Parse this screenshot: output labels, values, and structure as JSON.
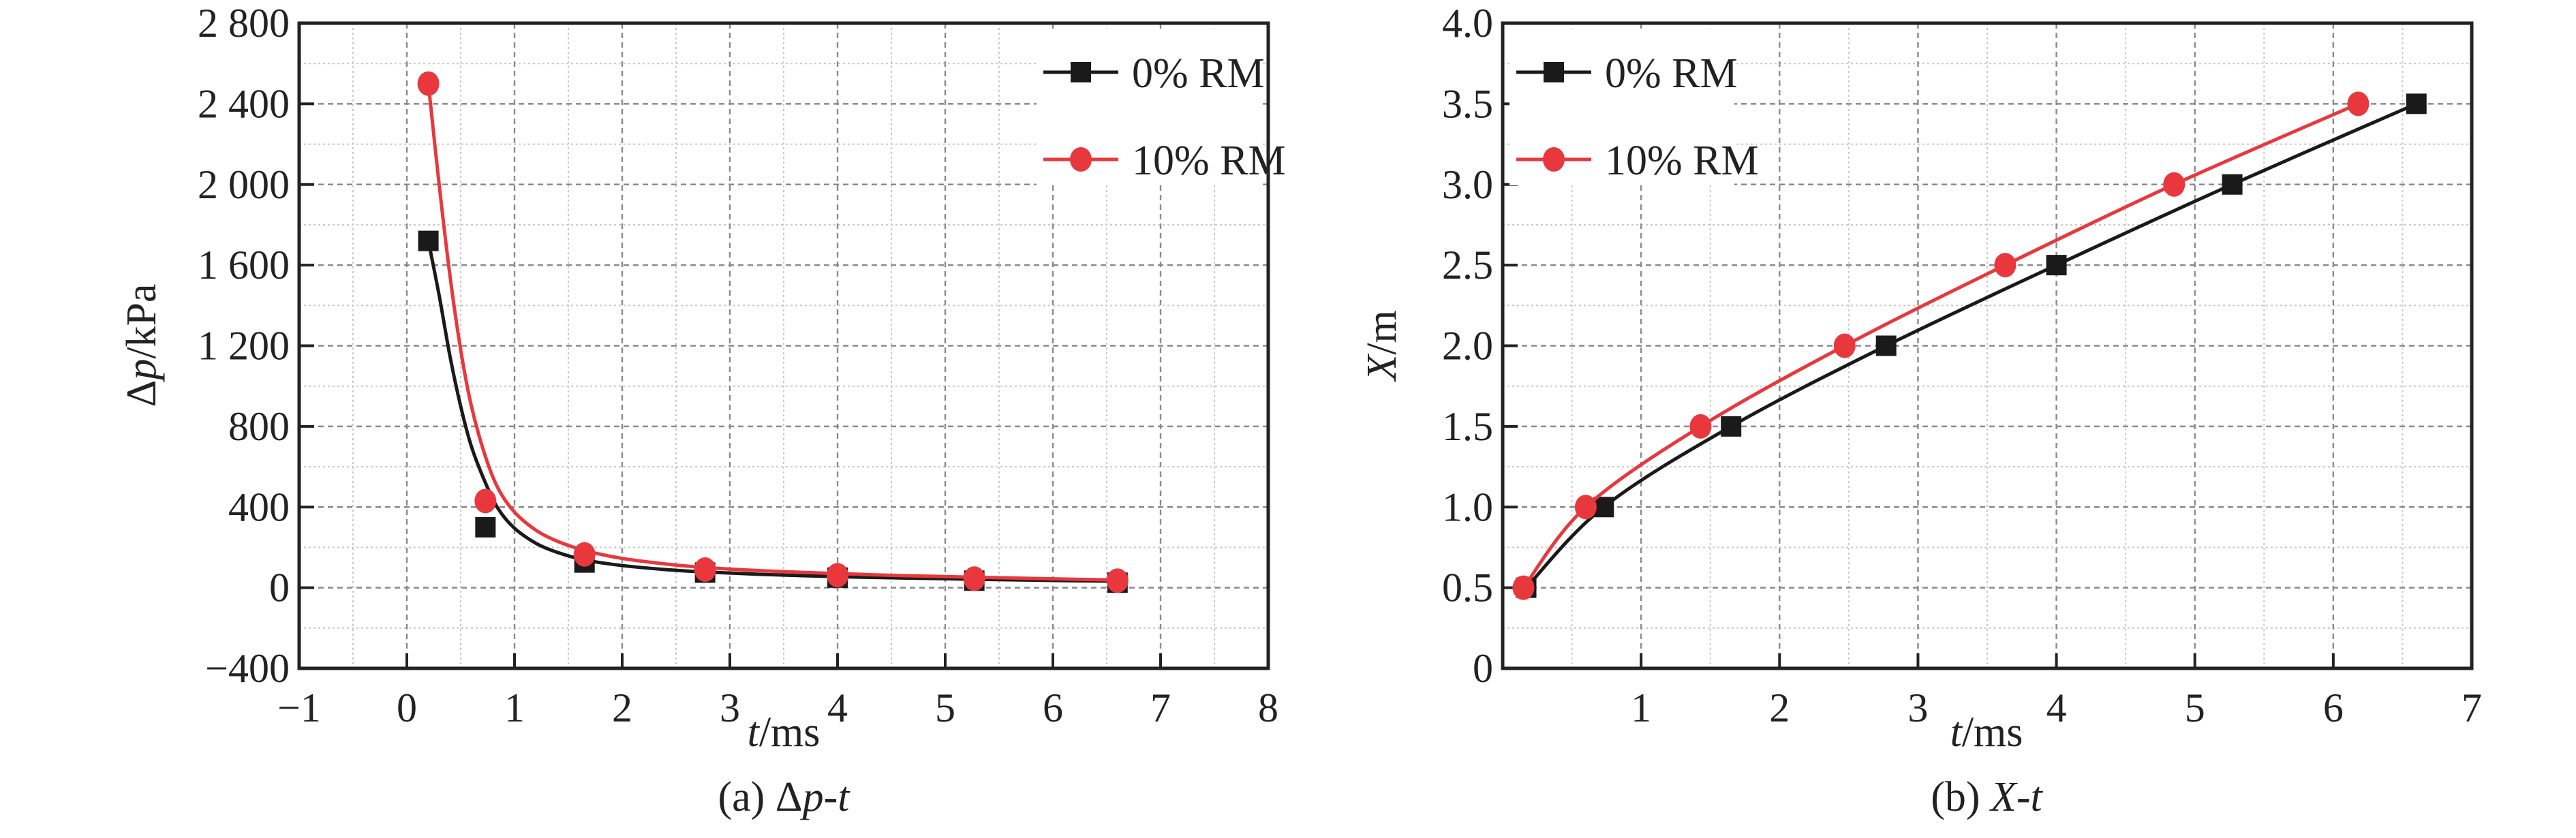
{
  "chart_data": [
    {
      "type": "line",
      "panel": "a",
      "caption": {
        "prefix": "(a) ",
        "delta": "Δ",
        "var1": "p",
        "dash": "-",
        "var2": "t"
      },
      "xlabel": {
        "var": "t",
        "unit": "/ms"
      },
      "ylabel": {
        "delta": "Δ",
        "var": "p",
        "unit": "/kPa"
      },
      "xlim": [
        -1,
        8
      ],
      "ylim": [
        -400,
        2800
      ],
      "xticks": [
        -1,
        0,
        1,
        2,
        3,
        4,
        5,
        6,
        7,
        8
      ],
      "xtick_labels": [
        "−1",
        "0",
        "1",
        "2",
        "3",
        "4",
        "5",
        "6",
        "7",
        "8"
      ],
      "yticks": [
        -400,
        0,
        400,
        800,
        1200,
        1600,
        2000,
        2400,
        2800
      ],
      "ytick_labels": [
        "−400",
        "0",
        "400",
        "800",
        "1 200",
        "1 600",
        "2 000",
        "2 400",
        "2 800"
      ],
      "grid": true,
      "legend": "top-right",
      "series": [
        {
          "name": "0% RM",
          "color": "#1a1a1a",
          "marker": "square",
          "x": [
            0.2,
            0.73,
            1.65,
            2.77,
            4.0,
            5.27,
            6.6
          ],
          "y": [
            1720,
            300,
            125,
            75,
            50,
            35,
            25
          ],
          "fit_x": [
            0.2,
            0.3,
            0.4,
            0.5,
            0.6,
            0.73,
            0.85,
            1.0,
            1.2,
            1.4,
            1.65,
            2.0,
            2.4,
            2.77,
            3.3,
            4.0,
            4.6,
            5.27,
            6.0,
            6.6
          ],
          "fit_y": [
            1720,
            1450,
            1150,
            900,
            700,
            520,
            390,
            295,
            220,
            175,
            138,
            110,
            90,
            78,
            66,
            55,
            48,
            42,
            36,
            32
          ]
        },
        {
          "name": "10% RM",
          "color": "#e8383d",
          "marker": "circle",
          "x": [
            0.2,
            0.73,
            1.65,
            2.77,
            4.0,
            5.27,
            6.6
          ],
          "y": [
            2500,
            430,
            165,
            90,
            62,
            45,
            35
          ],
          "fit_x": [
            0.2,
            0.3,
            0.4,
            0.5,
            0.6,
            0.73,
            0.85,
            1.0,
            1.2,
            1.4,
            1.65,
            2.0,
            2.4,
            2.77,
            3.3,
            4.0,
            4.6,
            5.27,
            6.0,
            6.6
          ],
          "fit_y": [
            2500,
            2000,
            1550,
            1180,
            900,
            650,
            490,
            375,
            285,
            230,
            185,
            145,
            118,
            100,
            84,
            70,
            60,
            52,
            44,
            38
          ]
        }
      ]
    },
    {
      "type": "line",
      "panel": "b",
      "caption": {
        "prefix": "(b) ",
        "var1": "X",
        "dash": "-",
        "var2": "t"
      },
      "xlabel": {
        "var": "t",
        "unit": "/ms"
      },
      "ylabel": {
        "var": "X",
        "unit": "/m"
      },
      "xlim": [
        0,
        7
      ],
      "ylim": [
        0,
        4.0
      ],
      "xticks": [
        1,
        2,
        3,
        4,
        5,
        6,
        7
      ],
      "xtick_labels": [
        "1",
        "2",
        "3",
        "4",
        "5",
        "6",
        "7"
      ],
      "yticks": [
        0,
        0.5,
        1.0,
        1.5,
        2.0,
        2.5,
        3.0,
        3.5,
        4.0
      ],
      "ytick_labels": [
        "0",
        "0.5",
        "1.0",
        "1.5",
        "2.0",
        "2.5",
        "3.0",
        "3.5",
        "4.0"
      ],
      "grid": true,
      "legend": "top-left",
      "series": [
        {
          "name": "0% RM",
          "color": "#1a1a1a",
          "marker": "square",
          "x": [
            0.17,
            0.73,
            1.65,
            2.77,
            4.0,
            5.27,
            6.6
          ],
          "y": [
            0.5,
            1.0,
            1.5,
            2.0,
            2.5,
            3.0,
            3.5
          ]
        },
        {
          "name": "10% RM",
          "color": "#e8383d",
          "marker": "circle",
          "x": [
            0.15,
            0.6,
            1.43,
            2.47,
            3.63,
            4.85,
            6.18
          ],
          "y": [
            0.5,
            1.0,
            1.5,
            2.0,
            2.5,
            3.0,
            3.5
          ]
        }
      ]
    }
  ]
}
